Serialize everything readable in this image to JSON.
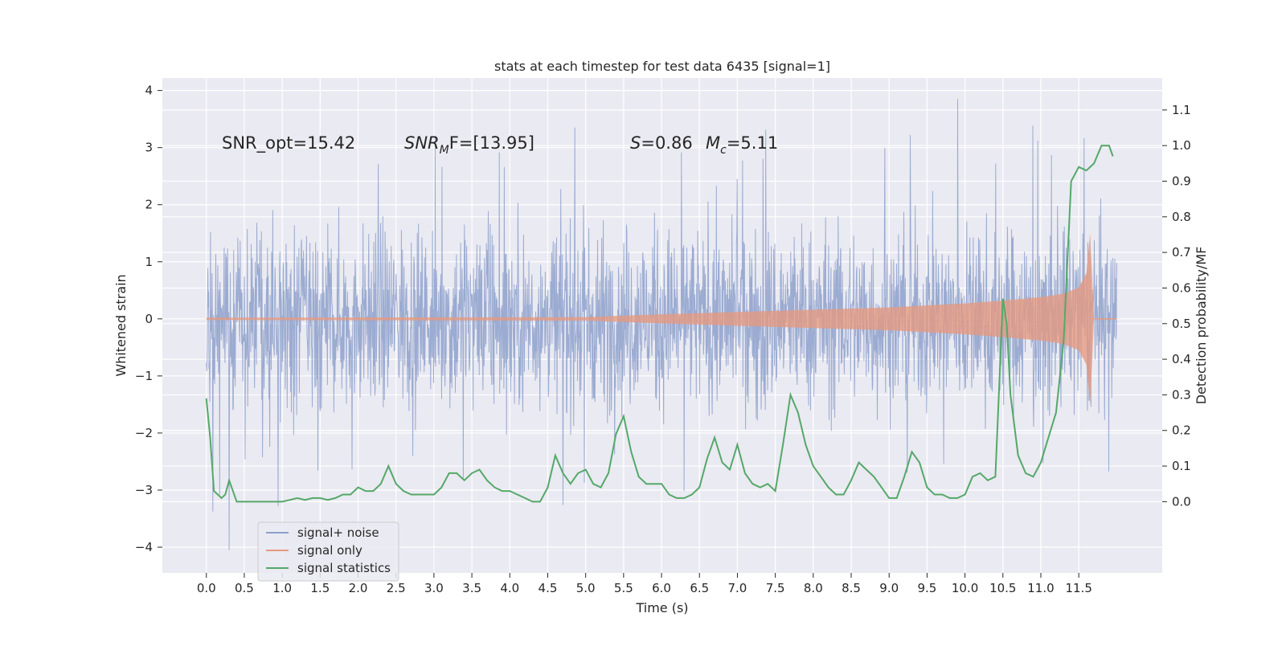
{
  "chart_data": {
    "type": "line",
    "title": "stats at each timestep for test data 6435 [signal=1]",
    "xlabel": "Time (s)",
    "ylabel_left": "Whitened strain",
    "ylabel_right": "Detection probability/MF",
    "xlim": [
      -0.58,
      12.6
    ],
    "ylim_left": [
      -4.45,
      4.22
    ],
    "ylim_right": [
      -0.2,
      1.19
    ],
    "x_ticks": [
      "0.0",
      "0.5",
      "1.0",
      "1.5",
      "2.0",
      "2.5",
      "3.0",
      "3.5",
      "4.0",
      "4.5",
      "5.0",
      "5.5",
      "6.0",
      "6.5",
      "7.0",
      "7.5",
      "8.0",
      "8.5",
      "9.0",
      "9.5",
      "10.0",
      "10.5",
      "11.0",
      "11.5"
    ],
    "x_tick_values": [
      0.0,
      0.5,
      1.0,
      1.5,
      2.0,
      2.5,
      3.0,
      3.5,
      4.0,
      4.5,
      5.0,
      5.5,
      6.0,
      6.5,
      7.0,
      7.5,
      8.0,
      8.5,
      9.0,
      9.5,
      10.0,
      10.5,
      11.0,
      11.5
    ],
    "y_ticks_left": [
      "4",
      "3",
      "2",
      "1",
      "0",
      "−1",
      "−2",
      "−3",
      "−4"
    ],
    "y_tick_values_left": [
      4,
      3,
      2,
      1,
      0,
      -1,
      -2,
      -3,
      -4
    ],
    "y_ticks_right": [
      "1.1",
      "1.0",
      "0.9",
      "0.8",
      "0.7",
      "0.6",
      "0.5",
      "0.4",
      "0.3",
      "0.2",
      "0.1",
      "0.0"
    ],
    "y_tick_values_right": [
      1.1,
      1.0,
      0.9,
      0.8,
      0.7,
      0.6,
      0.5,
      0.4,
      0.3,
      0.2,
      0.1,
      0.0
    ],
    "grid": true,
    "legend_position": "lower-left",
    "annotations": {
      "snr_opt": "SNR_opt=15.42",
      "snr_mf_main": "SNR",
      "snr_mf_sub": "M",
      "snr_mf_rest": "F=[13.95]",
      "s_main": "S",
      "s_rest": "=0.86",
      "mc_main": "M",
      "mc_sub": "c",
      "mc_rest": "=5.11"
    },
    "series": [
      {
        "name": "signal+ noise",
        "axis": "left",
        "color": "#8da0cb",
        "x_range": [
          0.0,
          12.0
        ],
        "typical_range": [
          -1.8,
          1.8
        ],
        "peak_max": 3.85,
        "peak_min": -4.05
      },
      {
        "name": "signal only",
        "axis": "left",
        "color": "#e5997f",
        "x_range": [
          0.0,
          12.0
        ],
        "envelope": {
          "x": [
            0.0,
            5.0,
            6.0,
            7.0,
            8.0,
            9.0,
            10.0,
            10.5,
            11.0,
            11.3,
            11.5,
            11.6,
            11.65,
            11.7
          ],
          "amp": [
            0.02,
            0.03,
            0.08,
            0.12,
            0.16,
            0.2,
            0.27,
            0.32,
            0.38,
            0.44,
            0.55,
            0.8,
            1.5,
            0.02
          ]
        }
      },
      {
        "name": "signal statistics",
        "axis": "right",
        "color": "#55a868",
        "x": [
          0.0,
          0.05,
          0.1,
          0.15,
          0.2,
          0.25,
          0.3,
          0.35,
          0.4,
          0.5,
          0.6,
          0.7,
          0.8,
          0.9,
          1.0,
          1.1,
          1.2,
          1.3,
          1.4,
          1.5,
          1.6,
          1.7,
          1.8,
          1.9,
          2.0,
          2.1,
          2.2,
          2.3,
          2.4,
          2.5,
          2.6,
          2.7,
          2.8,
          2.9,
          3.0,
          3.1,
          3.2,
          3.3,
          3.4,
          3.5,
          3.6,
          3.7,
          3.8,
          3.9,
          4.0,
          4.1,
          4.2,
          4.3,
          4.4,
          4.5,
          4.6,
          4.7,
          4.8,
          4.9,
          5.0,
          5.1,
          5.2,
          5.3,
          5.4,
          5.5,
          5.6,
          5.7,
          5.8,
          5.9,
          6.0,
          6.1,
          6.2,
          6.3,
          6.4,
          6.5,
          6.6,
          6.7,
          6.8,
          6.9,
          7.0,
          7.1,
          7.2,
          7.3,
          7.4,
          7.5,
          7.6,
          7.7,
          7.8,
          7.9,
          8.0,
          8.1,
          8.2,
          8.3,
          8.4,
          8.5,
          8.6,
          8.7,
          8.8,
          8.9,
          9.0,
          9.1,
          9.2,
          9.3,
          9.4,
          9.5,
          9.6,
          9.7,
          9.8,
          9.9,
          10.0,
          10.1,
          10.2,
          10.3,
          10.4,
          10.5,
          10.55,
          10.6,
          10.7,
          10.8,
          10.9,
          11.0,
          11.1,
          11.2,
          11.3,
          11.4,
          11.5,
          11.6,
          11.7,
          11.8,
          11.9,
          11.95
        ],
        "values": [
          0.29,
          0.18,
          0.03,
          0.02,
          0.01,
          0.02,
          0.06,
          0.03,
          0.0,
          0.0,
          0.0,
          0.0,
          0.0,
          0.0,
          0.0,
          0.005,
          0.01,
          0.005,
          0.01,
          0.01,
          0.005,
          0.01,
          0.02,
          0.02,
          0.04,
          0.03,
          0.03,
          0.05,
          0.1,
          0.05,
          0.03,
          0.02,
          0.02,
          0.02,
          0.02,
          0.04,
          0.08,
          0.08,
          0.06,
          0.08,
          0.09,
          0.06,
          0.04,
          0.03,
          0.03,
          0.02,
          0.01,
          0.0,
          0.0,
          0.04,
          0.13,
          0.08,
          0.05,
          0.08,
          0.09,
          0.05,
          0.04,
          0.08,
          0.19,
          0.24,
          0.14,
          0.07,
          0.05,
          0.05,
          0.05,
          0.02,
          0.01,
          0.01,
          0.02,
          0.04,
          0.12,
          0.18,
          0.11,
          0.09,
          0.16,
          0.08,
          0.05,
          0.04,
          0.05,
          0.03,
          0.16,
          0.3,
          0.25,
          0.16,
          0.1,
          0.07,
          0.04,
          0.02,
          0.02,
          0.06,
          0.11,
          0.09,
          0.07,
          0.04,
          0.01,
          0.01,
          0.07,
          0.14,
          0.11,
          0.04,
          0.02,
          0.02,
          0.01,
          0.01,
          0.02,
          0.07,
          0.08,
          0.06,
          0.07,
          0.57,
          0.5,
          0.3,
          0.13,
          0.08,
          0.07,
          0.11,
          0.18,
          0.25,
          0.45,
          0.9,
          0.94,
          0.93,
          0.95,
          1.0,
          1.0,
          0.97
        ]
      }
    ]
  }
}
